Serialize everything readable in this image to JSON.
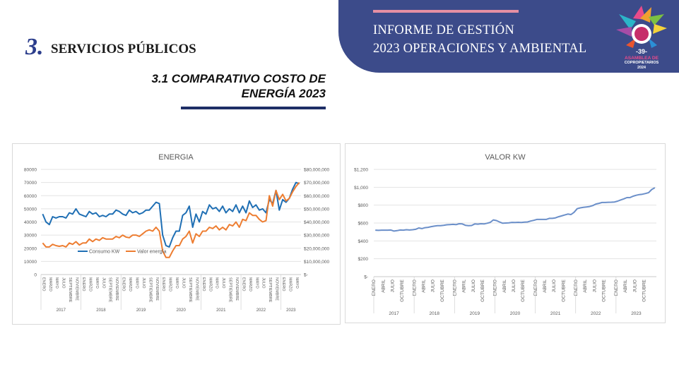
{
  "header": {
    "banner_line1": "INFORME DE GESTIÓN",
    "banner_line2": "2023 OPERACIONES Y AMBIENTAL",
    "logo_number": "-39-",
    "logo_line1": "ASAMBLEA DE",
    "logo_line2": "COPROPIETARIOS",
    "logo_year": "2024",
    "colors": {
      "banner": "#3c4b8a",
      "accent": "#e58fa3",
      "rule": "#1e2e66"
    }
  },
  "section": {
    "number": "3.",
    "title": "SERVICIOS PÚBLICOS",
    "subtitle_line1": "3.1 COMPARATIVO COSTO DE",
    "subtitle_line2": "ENERGÍA 2023"
  },
  "chart_data": [
    {
      "type": "line",
      "title": "ENERGIA",
      "y_left_ticks": [
        "0",
        "10000",
        "20000",
        "30000",
        "40000",
        "50000",
        "60000",
        "70000",
        "80000"
      ],
      "y_right_ticks": [
        "$-",
        "$10,000,000",
        "$20,000,000",
        "$30,000,000",
        "$40,000,000",
        "$50,000,000",
        "$60,000,000",
        "$70,000,000",
        "$80,000,000"
      ],
      "ylim_left": [
        0,
        80000
      ],
      "ylim_right": [
        0,
        80000000
      ],
      "month_labels": [
        "ENERO",
        "MARZO",
        "MAYO",
        "JULIO",
        "SEPTIEMBRE",
        "NOVIEMBRE"
      ],
      "years": [
        "2017",
        "2018",
        "2019",
        "2020",
        "2021",
        "2022",
        "2023"
      ],
      "legend_position": "bottom",
      "series": [
        {
          "name": "Consumo KW",
          "axis": "left",
          "color": "#1f6fb4",
          "values": [
            46000,
            40000,
            38000,
            44000,
            43000,
            44000,
            44000,
            43000,
            47000,
            46000,
            50000,
            46000,
            45000,
            44000,
            48000,
            46000,
            47000,
            44000,
            45000,
            44000,
            46000,
            46000,
            49000,
            48000,
            46000,
            45000,
            49000,
            47000,
            48000,
            46000,
            47000,
            49000,
            49000,
            52000,
            55000,
            54000,
            30000,
            22000,
            21000,
            28000,
            33000,
            33000,
            45000,
            47000,
            52000,
            36000,
            46000,
            40000,
            48000,
            46000,
            53000,
            50000,
            51000,
            48000,
            52000,
            47000,
            50000,
            48000,
            53000,
            47000,
            52000,
            47000,
            56000,
            51000,
            53000,
            49000,
            50000,
            47000,
            57000,
            54000,
            64000,
            49000,
            57000,
            55000,
            58000,
            65000,
            70000,
            69000
          ]
        },
        {
          "name": "Valor energía",
          "axis": "right",
          "color": "#ed7d31",
          "values": [
            24000000,
            21000000,
            21000000,
            23000000,
            22000000,
            21500000,
            22000000,
            21000000,
            24000000,
            23000000,
            25000000,
            22500000,
            24000000,
            24000000,
            27000000,
            25000000,
            27000000,
            26000000,
            28000000,
            27000000,
            27000000,
            27000000,
            29000000,
            28000000,
            30000000,
            28500000,
            28000000,
            30000000,
            30000000,
            29000000,
            31000000,
            33000000,
            34000000,
            33000000,
            36000000,
            33000000,
            18000000,
            13000000,
            13000000,
            18000000,
            22000000,
            22000000,
            27000000,
            29000000,
            33000000,
            24000000,
            31000000,
            29000000,
            33000000,
            33000000,
            36000000,
            35000000,
            37000000,
            34000000,
            36000000,
            34000000,
            38000000,
            37000000,
            40000000,
            36000000,
            42000000,
            41000000,
            47000000,
            45000000,
            45000000,
            42000000,
            40000000,
            41000000,
            60000000,
            52000000,
            64000000,
            57000000,
            61000000,
            56000000,
            58000000,
            63000000,
            67000000,
            70000000
          ]
        }
      ]
    },
    {
      "type": "line",
      "title": "VALOR KW",
      "y_ticks": [
        "$-",
        "$200",
        "$400",
        "$600",
        "$800",
        "$1,000",
        "$1,200"
      ],
      "ylim": [
        0,
        1200
      ],
      "month_labels": [
        "ENERO",
        "ABRIL",
        "JULIO",
        "OCTUBRE"
      ],
      "years": [
        "2017",
        "2018",
        "2019",
        "2020",
        "2021",
        "2022",
        "2023"
      ],
      "series": [
        {
          "name": "",
          "color": "#6b8fc9",
          "values": [
            520,
            518,
            520,
            520,
            520,
            522,
            510,
            515,
            522,
            520,
            525,
            522,
            525,
            530,
            545,
            538,
            548,
            552,
            560,
            565,
            570,
            570,
            575,
            580,
            583,
            585,
            582,
            592,
            590,
            575,
            570,
            572,
            590,
            587,
            592,
            590,
            598,
            607,
            635,
            628,
            612,
            598,
            600,
            602,
            607,
            606,
            608,
            606,
            610,
            612,
            622,
            630,
            640,
            640,
            640,
            640,
            652,
            652,
            658,
            670,
            680,
            690,
            700,
            695,
            720,
            760,
            770,
            775,
            780,
            785,
            795,
            812,
            820,
            830,
            830,
            832,
            833,
            835,
            845,
            858,
            870,
            884,
            885,
            900,
            910,
            918,
            922,
            930,
            940,
            975,
            995
          ]
        }
      ]
    }
  ]
}
